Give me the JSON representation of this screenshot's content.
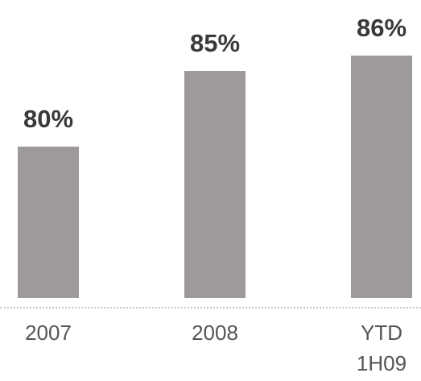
{
  "chart_data": {
    "type": "bar",
    "categories": [
      "2007",
      "2008",
      "YTD 1H09"
    ],
    "values": [
      80,
      85,
      86
    ],
    "value_labels": [
      "80%",
      "85%",
      "86%"
    ],
    "color": "#9e9a99",
    "ylim": [
      70,
      87
    ]
  }
}
